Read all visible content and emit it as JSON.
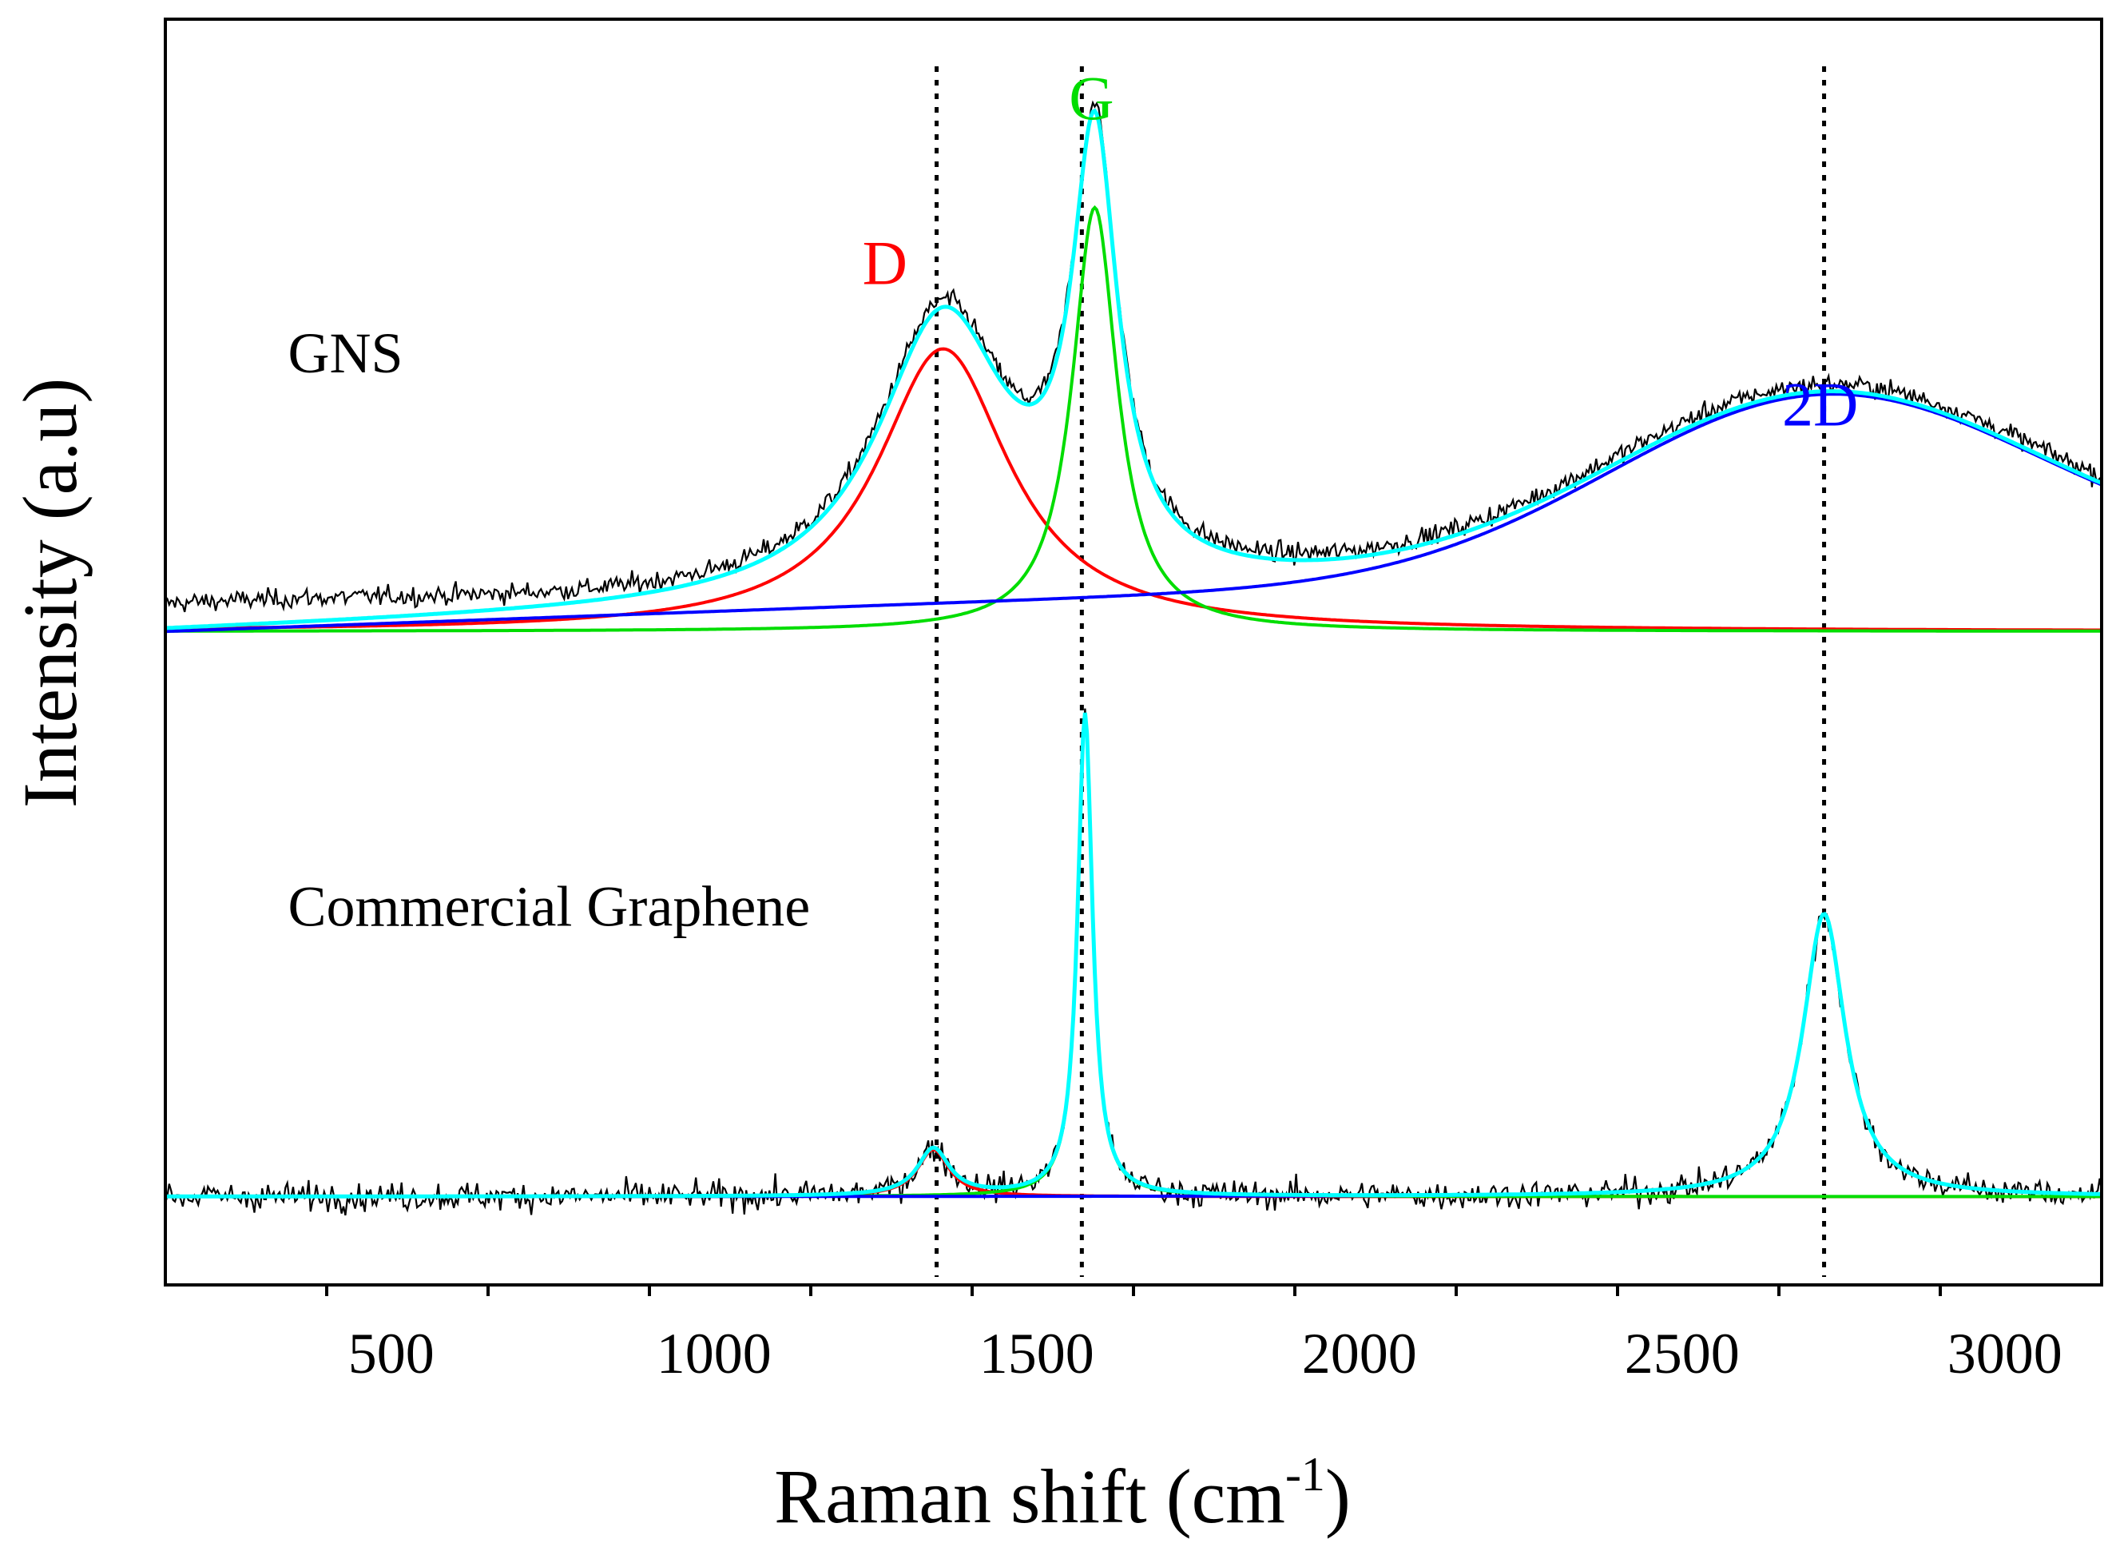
{
  "chart_data": {
    "type": "line",
    "xlabel": "Raman shift (cm",
    "xlabel_sup": "-1",
    "xlabel_close": ")",
    "ylabel": "Intensity (a.u)",
    "xlim": [
      150,
      3150
    ],
    "ylim": [
      -0.15,
      2.0
    ],
    "x_ticks": [
      500,
      1000,
      1500,
      2000,
      2500,
      3000
    ],
    "x_tick_labels": [
      "500",
      "1000",
      "1500",
      "2000",
      "2500",
      "3000"
    ],
    "x_minor_step": 250,
    "grid": false,
    "reference_lines": [
      1345,
      1570,
      2720
    ],
    "samples": [
      {
        "name": "GNS",
        "label": "GNS",
        "offset": 0.96,
        "noise": 0.014,
        "components": [
          {
            "name": "D",
            "label": "D",
            "center": 1355,
            "fwhm": 250,
            "height": 0.48,
            "color": "#ff0000"
          },
          {
            "name": "G",
            "label": "G",
            "center": 1590,
            "fwhm": 85,
            "height": 0.72,
            "color": "#00dd00"
          },
          {
            "name": "2D",
            "label": "2D",
            "center": 2720,
            "fwhm": 780,
            "height": 0.3,
            "color": "#0000ff",
            "shape": "gaussian",
            "baseline_slope": true
          }
        ],
        "envelope_color": "#00ffff",
        "data_color": "#000000"
      },
      {
        "name": "Commercial Graphene",
        "label": "Commercial Graphene",
        "offset": 0.0,
        "noise": 0.02,
        "components": [
          {
            "name": "D",
            "center": 1340,
            "fwhm": 60,
            "height": 0.08,
            "color": "#ff0000"
          },
          {
            "name": "G",
            "center": 1575,
            "fwhm": 28,
            "height": 0.82,
            "color": "#00dd00"
          },
          {
            "name": "2D",
            "center": 2720,
            "fwhm": 80,
            "height": 0.48,
            "color": "#0000ff"
          }
        ],
        "envelope_color": "#00ffff",
        "data_color": "#000000"
      }
    ],
    "peak_labels": [
      {
        "text": "D",
        "color": "#ff0000",
        "x": 1230,
        "y": 1.55
      },
      {
        "text": "G",
        "color": "#00dd00",
        "x": 1550,
        "y": 1.83
      },
      {
        "text": "2D",
        "color": "#0000ff",
        "x": 2655,
        "y": 1.31
      }
    ],
    "sample_labels": [
      {
        "text": "GNS",
        "x": 340,
        "y": 1.4
      },
      {
        "text": "Commercial Graphene",
        "x": 340,
        "y": 0.46
      }
    ]
  }
}
